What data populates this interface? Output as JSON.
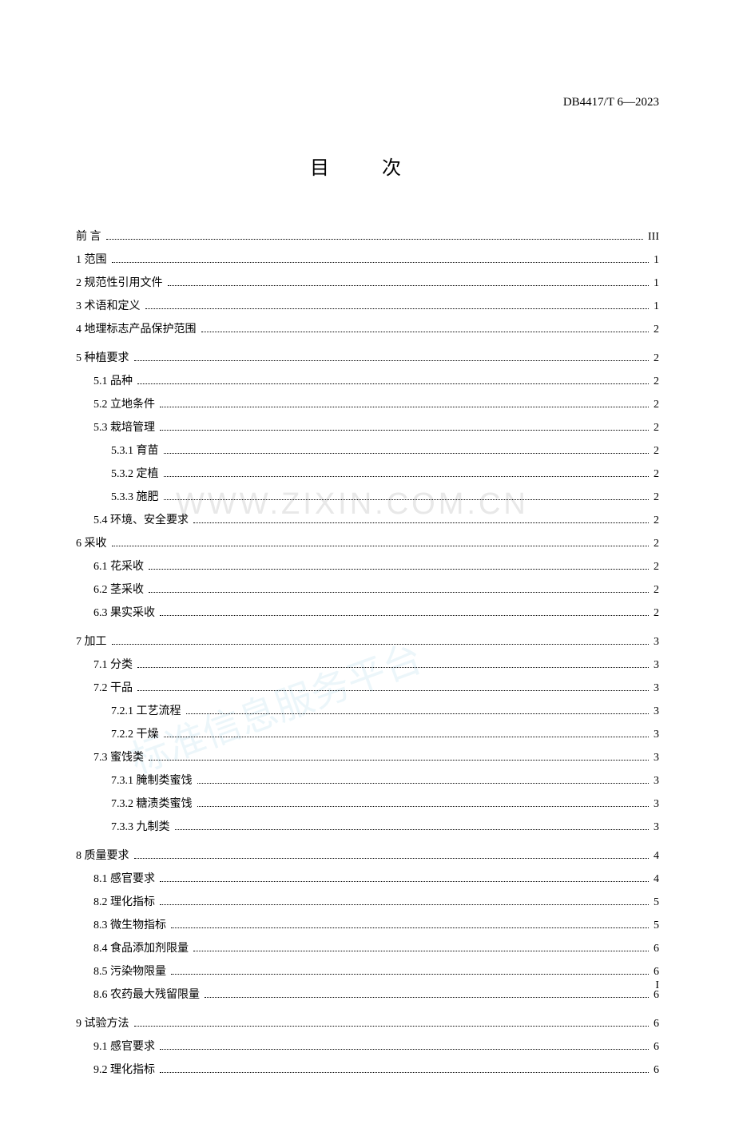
{
  "header_code": "DB4417/T 6—2023",
  "title": "目    次",
  "watermark1": "WWW.ZIXIN.COM.CN",
  "watermark2": "标准信息服务平台",
  "page_number": "I",
  "toc": [
    {
      "label": "前        言",
      "page": "III",
      "indent": 0,
      "preface": true,
      "group_end": false
    },
    {
      "label": "1 范围",
      "page": "1",
      "indent": 0,
      "group_end": false
    },
    {
      "label": "2 规范性引用文件",
      "page": "1",
      "indent": 0,
      "group_end": false
    },
    {
      "label": "3 术语和定义",
      "page": "1",
      "indent": 0,
      "group_end": false
    },
    {
      "label": "4 地理标志产品保护范围",
      "page": "2",
      "indent": 0,
      "group_end": true
    },
    {
      "label": "5 种植要求",
      "page": "2",
      "indent": 0,
      "group_end": false
    },
    {
      "label": "5.1 品种",
      "page": "2",
      "indent": 1,
      "group_end": false
    },
    {
      "label": "5.2 立地条件",
      "page": "2",
      "indent": 1,
      "group_end": false
    },
    {
      "label": "5.3 栽培管理",
      "page": "2",
      "indent": 1,
      "group_end": false
    },
    {
      "label": "5.3.1 育苗",
      "page": "2",
      "indent": 2,
      "group_end": false
    },
    {
      "label": "5.3.2 定植",
      "page": "2",
      "indent": 2,
      "group_end": false
    },
    {
      "label": "5.3.3 施肥",
      "page": "2",
      "indent": 2,
      "group_end": false
    },
    {
      "label": "5.4 环境、安全要求",
      "page": "2",
      "indent": 1,
      "group_end": false
    },
    {
      "label": "6 采收",
      "page": "2",
      "indent": 0,
      "group_end": false
    },
    {
      "label": "6.1 花采收",
      "page": "2",
      "indent": 1,
      "group_end": false
    },
    {
      "label": "6.2 茎采收",
      "page": "2",
      "indent": 1,
      "group_end": false
    },
    {
      "label": "6.3 果实采收",
      "page": "2",
      "indent": 1,
      "group_end": true
    },
    {
      "label": "7 加工",
      "page": "3",
      "indent": 0,
      "group_end": false
    },
    {
      "label": "7.1 分类",
      "page": "3",
      "indent": 1,
      "group_end": false
    },
    {
      "label": "7.2 干品",
      "page": "3",
      "indent": 1,
      "group_end": false
    },
    {
      "label": "7.2.1 工艺流程",
      "page": "3",
      "indent": 2,
      "group_end": false
    },
    {
      "label": "7.2.2 干燥",
      "page": "3",
      "indent": 2,
      "group_end": false
    },
    {
      "label": "7.3 蜜饯类",
      "page": "3",
      "indent": 1,
      "group_end": false
    },
    {
      "label": "7.3.1 腌制类蜜饯",
      "page": "3",
      "indent": 2,
      "group_end": false
    },
    {
      "label": "7.3.2 糖渍类蜜饯",
      "page": "3",
      "indent": 2,
      "group_end": false
    },
    {
      "label": "7.3.3 九制类",
      "page": "3",
      "indent": 2,
      "group_end": true
    },
    {
      "label": "8 质量要求",
      "page": "4",
      "indent": 0,
      "group_end": false
    },
    {
      "label": "8.1 感官要求",
      "page": "4",
      "indent": 1,
      "group_end": false
    },
    {
      "label": "8.2 理化指标",
      "page": "5",
      "indent": 1,
      "group_end": false
    },
    {
      "label": "8.3 微生物指标",
      "page": "5",
      "indent": 1,
      "group_end": false
    },
    {
      "label": "8.4 食品添加剂限量",
      "page": "6",
      "indent": 1,
      "group_end": false
    },
    {
      "label": "8.5 污染物限量",
      "page": "6",
      "indent": 1,
      "group_end": false
    },
    {
      "label": "8.6 农药最大残留限量",
      "page": "6",
      "indent": 1,
      "group_end": true
    },
    {
      "label": "9 试验方法",
      "page": "6",
      "indent": 0,
      "group_end": false
    },
    {
      "label": "9.1 感官要求",
      "page": "6",
      "indent": 1,
      "group_end": false
    },
    {
      "label": "9.2 理化指标",
      "page": "6",
      "indent": 1,
      "group_end": false
    }
  ]
}
